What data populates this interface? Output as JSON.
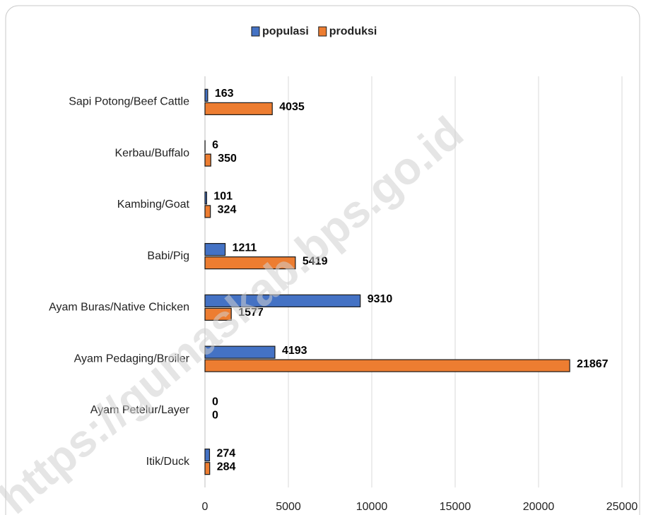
{
  "chart_data": {
    "type": "bar",
    "orientation": "horizontal",
    "categories": [
      "Sapi Potong/Beef Cattle",
      "Kerbau/Buffalo",
      "Kambing/Goat",
      "Babi/Pig",
      "Ayam Buras/Native Chicken",
      "Ayam Pedaging/Broiler",
      "Ayam Petelur/Layer",
      "Itik/Duck"
    ],
    "series": [
      {
        "name": "populasi",
        "color": "#4472c4",
        "values": [
          163,
          6,
          101,
          1211,
          9310,
          4193,
          0,
          274
        ]
      },
      {
        "name": "produksi",
        "color": "#ed7d31",
        "values": [
          4035,
          350,
          324,
          5419,
          1577,
          21867,
          0,
          284
        ]
      }
    ],
    "xlim": [
      0,
      25000
    ],
    "xticks": [
      0,
      5000,
      10000,
      15000,
      20000,
      25000
    ],
    "grid": true,
    "legend": "top",
    "watermark": "https://gumaskab.bps.go.id"
  }
}
